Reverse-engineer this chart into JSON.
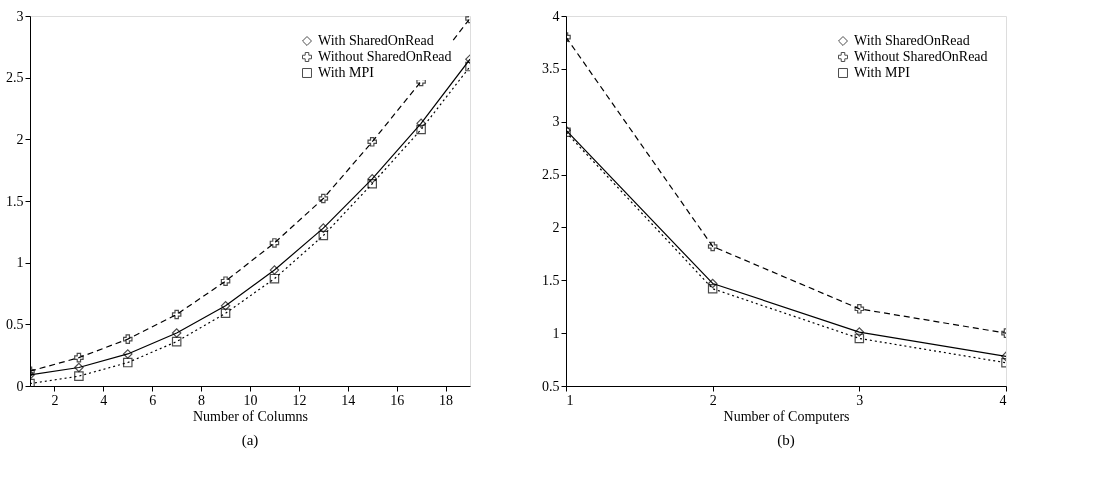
{
  "chart_data": [
    {
      "type": "line",
      "title": "(a)",
      "xlabel": "Number of Columns",
      "x": [
        1,
        3,
        5,
        7,
        9,
        11,
        13,
        15,
        17,
        19
      ],
      "xlim": [
        1,
        19
      ],
      "xticks": [
        2,
        4,
        6,
        8,
        10,
        12,
        14,
        16,
        18
      ],
      "ylim": [
        0,
        3
      ],
      "yticks": [
        0,
        0.5,
        1,
        1.5,
        2,
        2.5,
        3
      ],
      "grid": false,
      "legend": "top right",
      "series": [
        {
          "name": "With SharedOnRead",
          "color": "#000000",
          "marker": "diamond",
          "line_style": "solid",
          "values": [
            0.09,
            0.15,
            0.26,
            0.43,
            0.65,
            0.94,
            1.28,
            1.68,
            2.13,
            2.65
          ]
        },
        {
          "name": "Without SharedOnRead",
          "color": "#000000",
          "marker": "cross",
          "line_style": "dashed",
          "values": [
            0.12,
            0.23,
            0.38,
            0.58,
            0.85,
            1.16,
            1.52,
            1.98,
            2.47,
            2.98
          ]
        },
        {
          "name": "With MPI",
          "color": "#000000",
          "marker": "square",
          "line_style": "dotted",
          "values": [
            0.02,
            0.08,
            0.19,
            0.36,
            0.59,
            0.87,
            1.22,
            1.64,
            2.08,
            2.59
          ]
        }
      ]
    },
    {
      "type": "line",
      "title": "(b)",
      "xlabel": "Number of Computers",
      "x": [
        1,
        2,
        3,
        4
      ],
      "xlim": [
        1,
        4
      ],
      "xticks": [
        1,
        2,
        3,
        4
      ],
      "ylim": [
        0.5,
        4
      ],
      "yticks": [
        0.5,
        1,
        1.5,
        2,
        2.5,
        3,
        3.5,
        4
      ],
      "grid": false,
      "legend": "top right",
      "series": [
        {
          "name": "With SharedOnRead",
          "color": "#000000",
          "marker": "diamond",
          "line_style": "solid",
          "values": [
            2.92,
            1.47,
            1.01,
            0.78
          ]
        },
        {
          "name": "Without SharedOnRead",
          "color": "#000000",
          "marker": "cross",
          "line_style": "dashed",
          "values": [
            3.8,
            1.82,
            1.23,
            1.0
          ]
        },
        {
          "name": "With MPI",
          "color": "#000000",
          "marker": "square",
          "line_style": "dotted",
          "values": [
            2.9,
            1.42,
            0.95,
            0.72
          ]
        }
      ]
    }
  ]
}
